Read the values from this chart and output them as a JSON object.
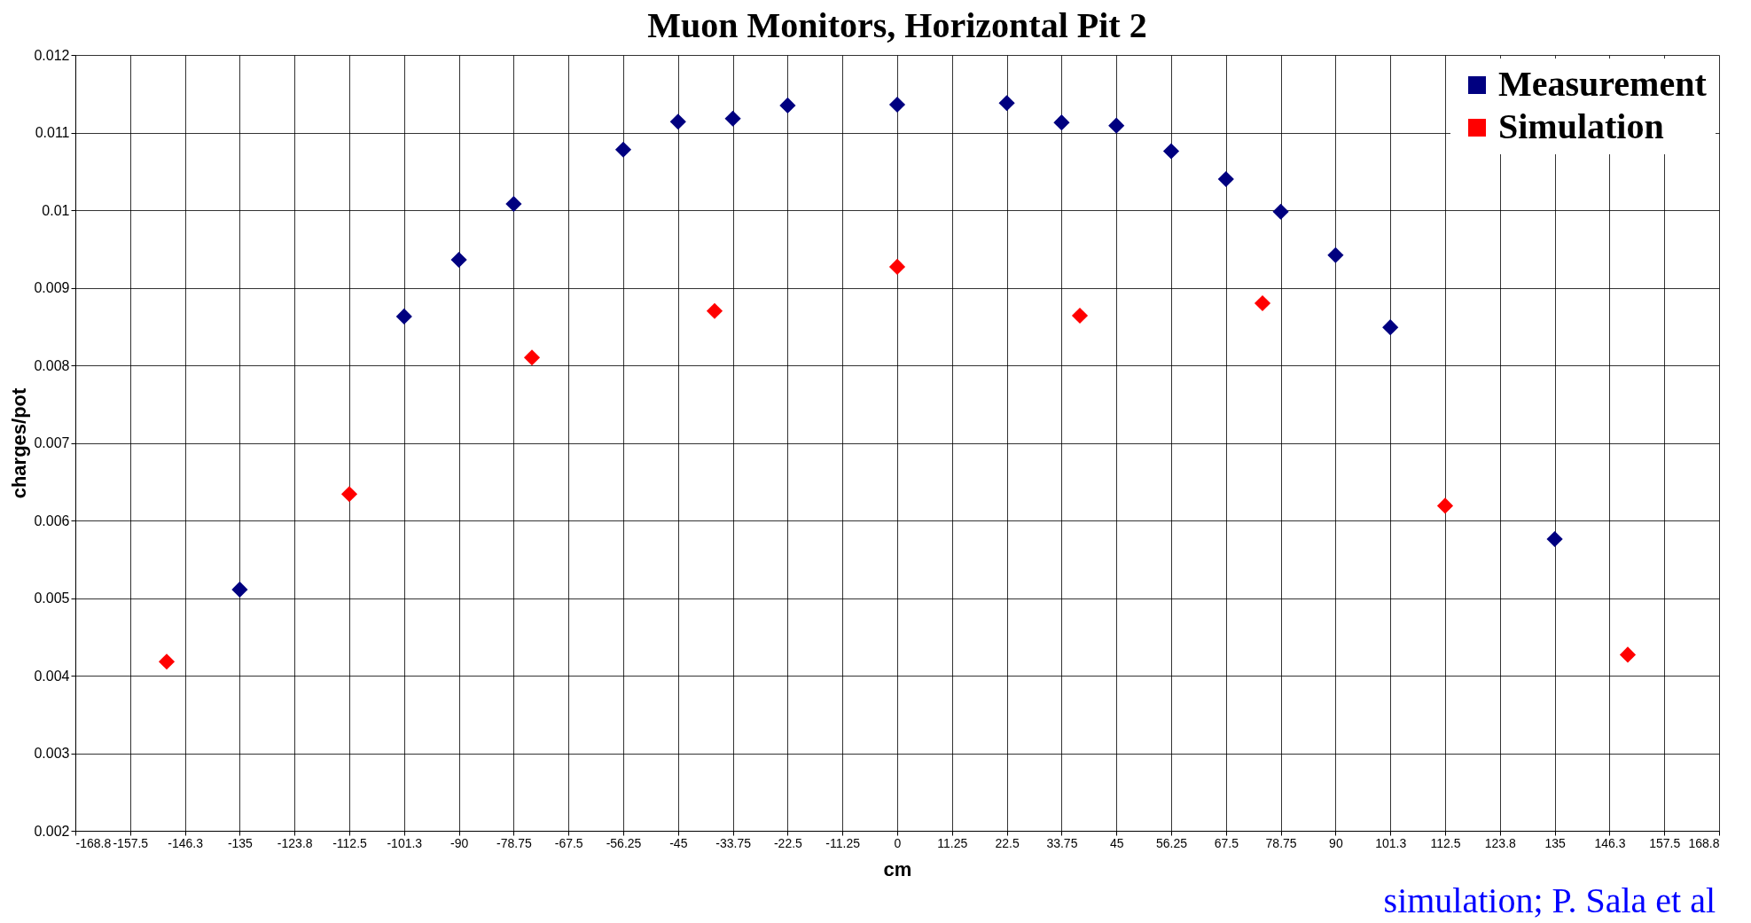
{
  "chart_data": {
    "type": "scatter",
    "title": "Muon Monitors, Horizontal Pit 2",
    "xlabel": "cm",
    "ylabel": "charges/pot",
    "series": [
      {
        "name": "Measurement",
        "color": "#000080",
        "x": [
          -135,
          -101.25,
          -90,
          -78.75,
          -56.25,
          -45,
          -33.75,
          -22.5,
          0,
          22.5,
          33.75,
          45,
          56.25,
          67.5,
          78.75,
          90,
          101.25,
          135
        ],
        "values": [
          0.00511,
          0.00863,
          0.00936,
          0.01008,
          0.01078,
          0.01114,
          0.01118,
          0.01135,
          0.01136,
          0.01138,
          0.01113,
          0.01109,
          0.01076,
          0.0104,
          0.00998,
          0.00942,
          0.00849,
          0.00576
        ]
      },
      {
        "name": "Simulation",
        "color": "#ff0000",
        "x": [
          -150,
          -112.5,
          -75,
          -37.5,
          0,
          37.5,
          75,
          112.5,
          150
        ],
        "values": [
          0.00418,
          0.00634,
          0.0081,
          0.0087,
          0.00927,
          0.00864,
          0.0088,
          0.00619,
          0.00427
        ]
      }
    ],
    "xlim": [
      -168.75,
      168.75
    ],
    "xticks": [
      {
        "value": -168.75,
        "label": "-168.8"
      },
      -157.5,
      {
        "value": -146.25,
        "label": "-146.3"
      },
      -135,
      {
        "value": -123.75,
        "label": "-123.8"
      },
      -112.5,
      {
        "value": -101.25,
        "label": "-101.3"
      },
      -90,
      -78.75,
      -67.5,
      -56.25,
      -45,
      -33.75,
      -22.5,
      -11.25,
      0,
      11.25,
      22.5,
      33.75,
      45,
      56.25,
      67.5,
      78.75,
      90,
      {
        "value": 101.25,
        "label": "101.3"
      },
      112.5,
      {
        "value": 123.75,
        "label": "123.8"
      },
      135,
      {
        "value": 146.25,
        "label": "146.3"
      },
      157.5,
      {
        "value": 168.75,
        "label": "168.8"
      }
    ],
    "ylim": [
      0.002,
      0.012
    ],
    "yticks": [
      0.002,
      0.003,
      0.004,
      0.005,
      0.006,
      0.007,
      0.008,
      0.009,
      0.01,
      0.011,
      0.012
    ],
    "grid": true,
    "legend": "top right",
    "marker": "diamond",
    "annotations": [
      "simulation; P. Sala et al"
    ]
  }
}
